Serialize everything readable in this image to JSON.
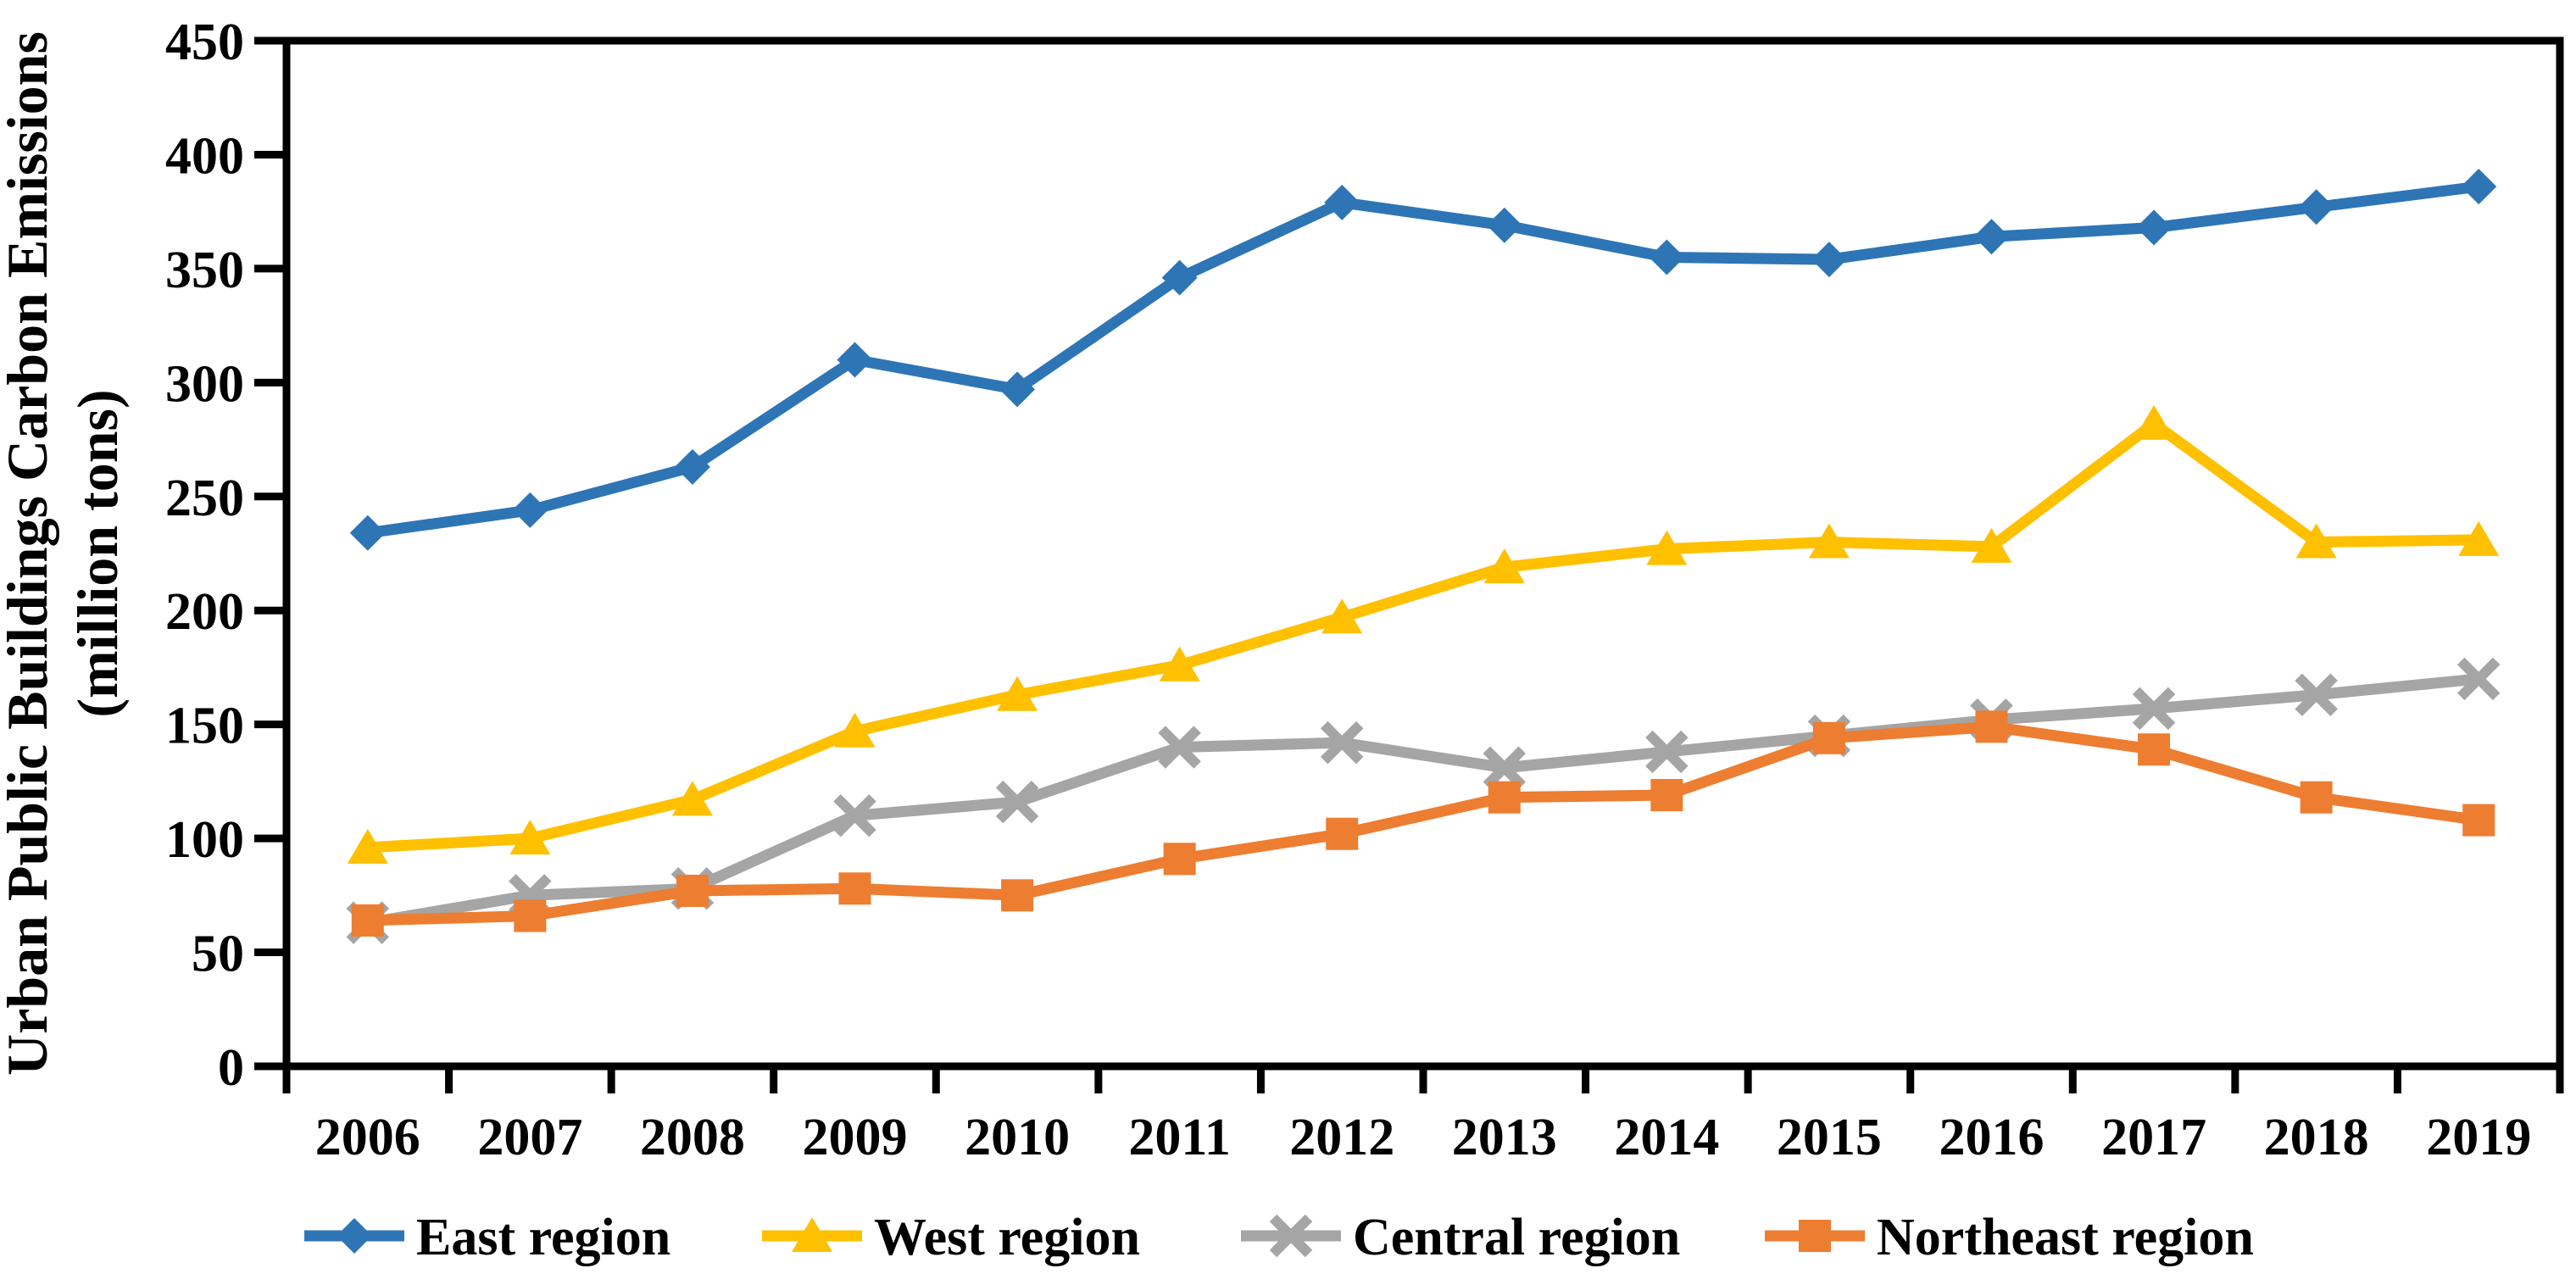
{
  "chart_data": {
    "type": "line",
    "title_lines": [
      "Urban Public Buildings Carbon Emissions",
      "(million tons)"
    ],
    "ylabel": "Urban Public Buildings Carbon Emissions (million tons)",
    "xlabel": "",
    "x": [
      "2006",
      "2007",
      "2008",
      "2009",
      "2010",
      "2011",
      "2012",
      "2013",
      "2014",
      "2015",
      "2016",
      "2017",
      "2018",
      "2019"
    ],
    "series": [
      {
        "name": "East region",
        "color": "#2E75B6",
        "marker": "diamond",
        "values": [
          234,
          244,
          263,
          310,
          297,
          346,
          379,
          369,
          355,
          354,
          364,
          368,
          377,
          386
        ]
      },
      {
        "name": "West region",
        "color": "#FFC000",
        "marker": "triangle",
        "values": [
          96,
          100,
          117,
          147,
          163,
          176,
          197,
          219,
          227,
          230,
          228,
          282,
          230,
          231
        ]
      },
      {
        "name": "Central region",
        "color": "#A5A5A5",
        "marker": "x",
        "values": [
          63,
          75,
          78,
          110,
          116,
          140,
          142,
          131,
          138,
          145,
          152,
          157,
          163,
          170
        ]
      },
      {
        "name": "Northeast region",
        "color": "#ED7D31",
        "marker": "square",
        "values": [
          64,
          66,
          77,
          78,
          75,
          91,
          102,
          118,
          119,
          144,
          149,
          139,
          118,
          108
        ]
      }
    ],
    "ylim": [
      0,
      450
    ],
    "yticks": [
      0,
      50,
      100,
      150,
      200,
      250,
      300,
      350,
      400,
      450
    ],
    "grid": false,
    "legend_position": "bottom",
    "axis_color": "#000000",
    "background": "#FFFFFF"
  }
}
